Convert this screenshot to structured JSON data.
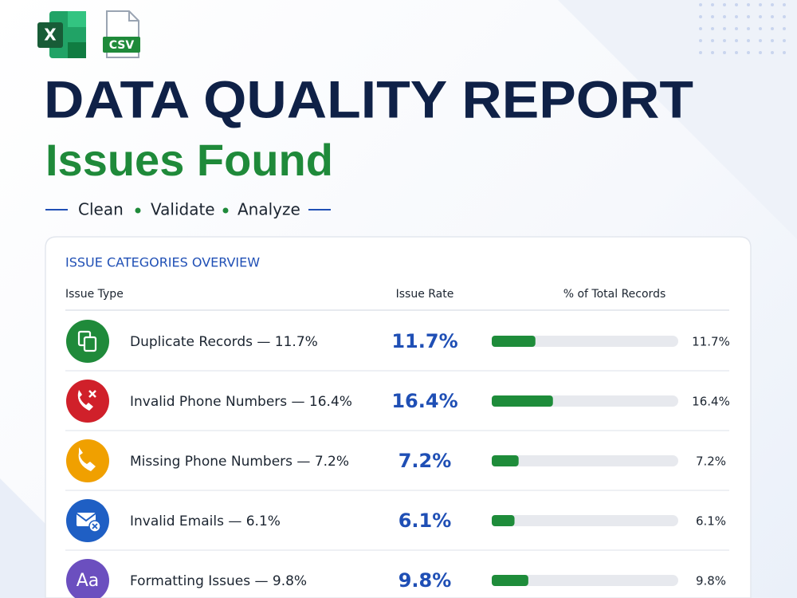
{
  "header": {
    "app_icons": [
      "X",
      "CSV"
    ],
    "title": "DATA QUALITY REPORT",
    "subtitle": "Issues Found",
    "tags": [
      "Clean",
      "Validate",
      "Analyze"
    ]
  },
  "table": {
    "heading": "ISSUE CATEGORIES OVERVIEW",
    "columns": [
      "Issue Type",
      "Issue Rate",
      "% of Total Records"
    ],
    "xlim": [
      0,
      50
    ],
    "bar_color": "#1e8c3a",
    "rows": [
      {
        "label": "Duplicate Records — 11.7%",
        "rate": "11.7%",
        "value": 11.7,
        "value_label": "11.7%",
        "color": "#1f8a3a"
      },
      {
        "label": "Invalid Phone Numbers — 16.4%",
        "rate": "16.4%",
        "value": 16.4,
        "value_label": "16.4%",
        "color": "#d0202a"
      },
      {
        "label": "Missing Phone Numbers — 7.2%",
        "rate": "7.2%",
        "value": 7.2,
        "value_label": "7.2%",
        "color": "#f0a000"
      },
      {
        "label": "Invalid Emails — 6.1%",
        "rate": "6.1%",
        "value": 6.1,
        "value_label": "6.1%",
        "color": "#1f5fc4"
      },
      {
        "label": "Formatting Issues — 9.8%",
        "rate": "9.8%",
        "value": 9.8,
        "value_label": "9.8%",
        "color": "#6b4fbf",
        "icon_text": "Aa"
      }
    ]
  }
}
